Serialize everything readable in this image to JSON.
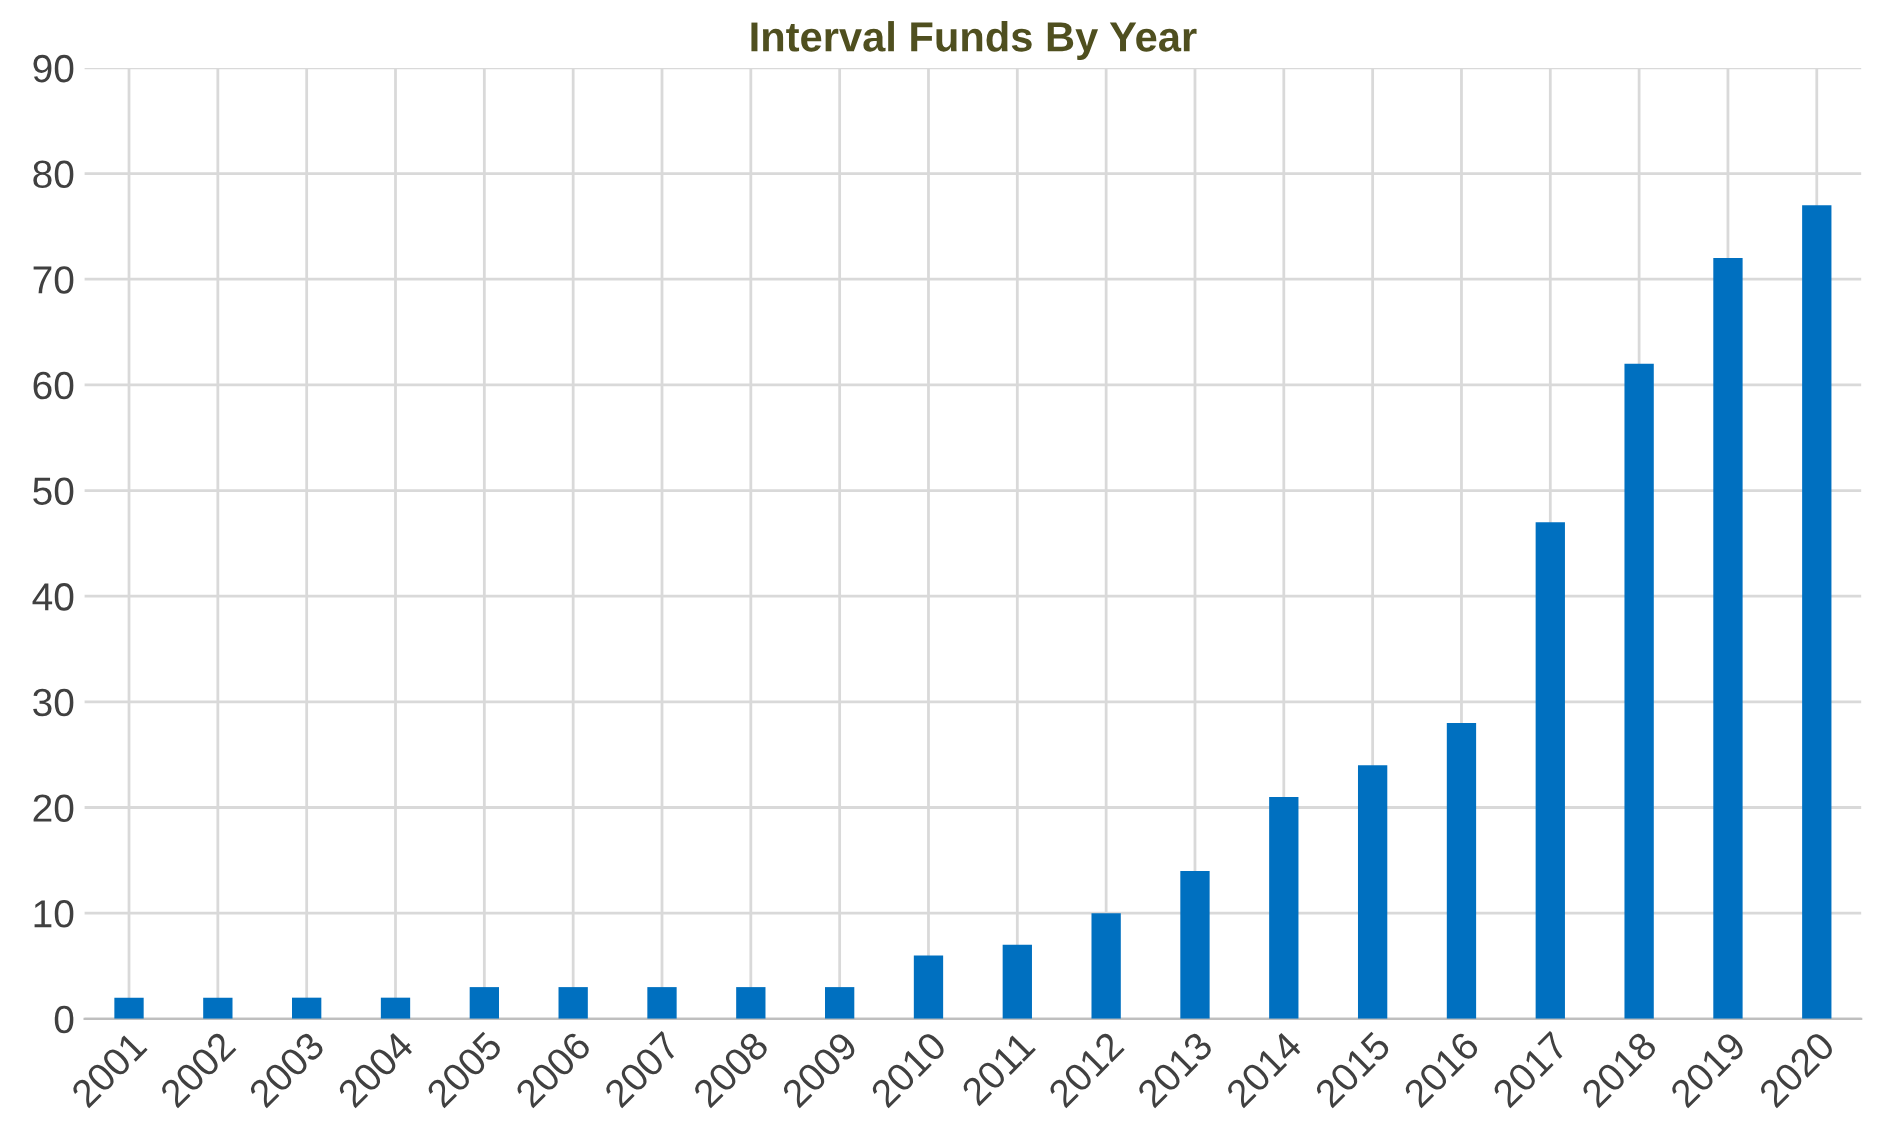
{
  "chart_data": {
    "type": "bar",
    "title": "Interval Funds By Year",
    "categories": [
      "2001",
      "2002",
      "2003",
      "2004",
      "2005",
      "2006",
      "2007",
      "2008",
      "2009",
      "2010",
      "2011",
      "2012",
      "2013",
      "2014",
      "2015",
      "2016",
      "2017",
      "2018",
      "2019",
      "2020"
    ],
    "values": [
      2,
      2,
      2,
      2,
      3,
      3,
      3,
      3,
      3,
      6,
      7,
      10,
      14,
      21,
      24,
      28,
      47,
      62,
      72,
      77
    ],
    "color": "#0070c0",
    "ylim": [
      0,
      90
    ],
    "yticks": [
      0,
      10,
      20,
      30,
      40,
      50,
      60,
      70,
      80,
      90
    ],
    "grid": true
  }
}
